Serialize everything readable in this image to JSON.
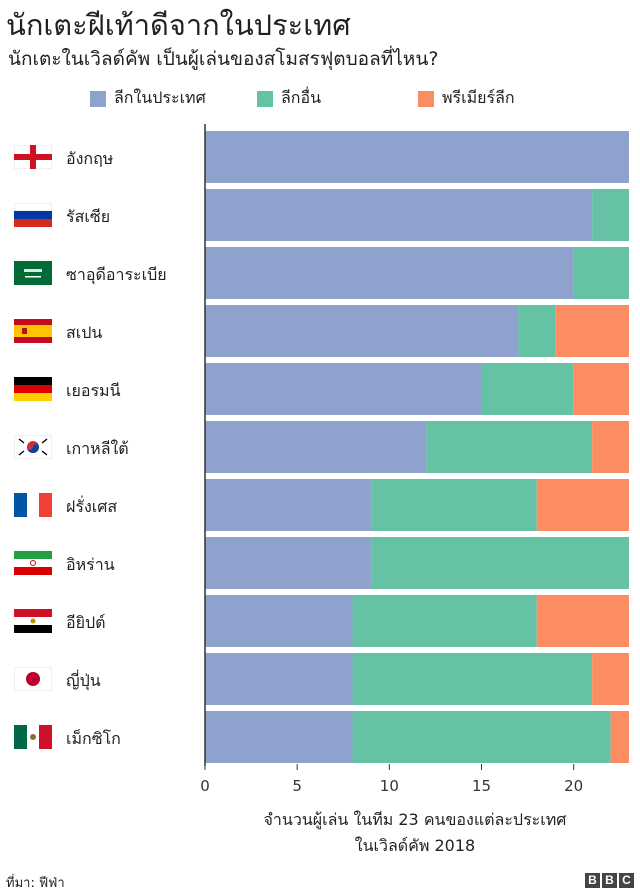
{
  "title": "นักเตะฝีเท้าดีจากในประเทศ",
  "subtitle": "นักเตะในเวิลด์คัพ เป็นผู้เล่นของสโมสรฟุตบอลที่ไหน?",
  "legend": [
    {
      "label": "ลีกในประเทศ",
      "color": "#8ea2cd"
    },
    {
      "label": "ลีกอื่น",
      "color": "#66c2a5"
    },
    {
      "label": "พรีเมียร์ลีก",
      "color": "#fc8d62"
    }
  ],
  "flags": [
    "england-flag-icon",
    "russia-flag-icon",
    "saudi-arabia-flag-icon",
    "spain-flag-icon",
    "germany-flag-icon",
    "south-korea-flag-icon",
    "france-flag-icon",
    "iran-flag-icon",
    "egypt-flag-icon",
    "japan-flag-icon",
    "mexico-flag-icon"
  ],
  "chart_data": {
    "type": "bar",
    "orientation": "horizontal",
    "stacked": true,
    "categories": [
      "อังกฤษ",
      "รัสเซีย",
      "ซาอุดีอาระเบีย",
      "สเปน",
      "เยอรมนี",
      "เกาหลีใต้",
      "ฝรั่งเศส",
      "อิหร่าน",
      "อียิปต์",
      "ญี่ปุ่น",
      "เม็กซิโก"
    ],
    "series": [
      {
        "name": "ลีกในประเทศ",
        "values": [
          23,
          21,
          20,
          17,
          15,
          12,
          9,
          9,
          8,
          8,
          8
        ]
      },
      {
        "name": "ลีกอื่น",
        "values": [
          0,
          2,
          3,
          2,
          5,
          9,
          9,
          14,
          10,
          13,
          14
        ]
      },
      {
        "name": "พรีเมียร์ลีก",
        "values": [
          0,
          0,
          0,
          4,
          3,
          2,
          5,
          0,
          5,
          2,
          1
        ]
      }
    ],
    "xlim": [
      0,
      23
    ],
    "xticks": [
      "0",
      "5",
      "10",
      "15",
      "20"
    ],
    "xlabel": "จำนวนผู้เล่น ในทีม 23 คนของแต่ละประเทศ ในเวิลด์คัพ 2018",
    "xlabel_lines": [
      "จำนวนผู้เล่น ในทีม 23 คนของแต่ละประเทศ",
      "ในเวิลด์คัพ 2018"
    ]
  },
  "source": "ที่มา: ฟีฟ่า",
  "brand": [
    "B",
    "B",
    "C"
  ]
}
